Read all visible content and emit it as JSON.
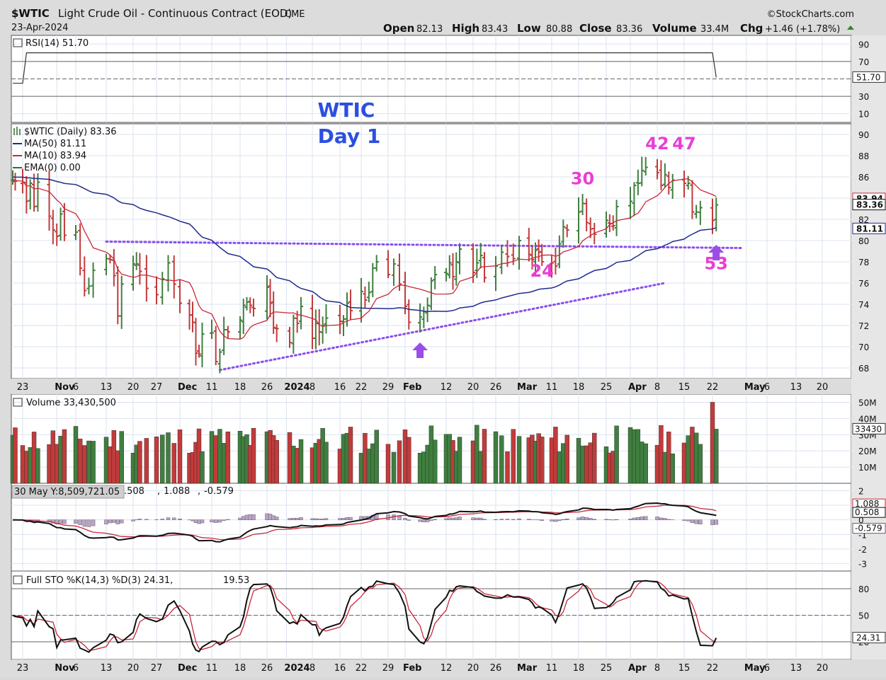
{
  "header": {
    "symbol": "$WTIC",
    "name": "Light Crude Oil - Continuous Contract (EOD)",
    "exchange": "CME",
    "date": "23-Apr-2024",
    "source": "©StockCharts.com",
    "ohlc": {
      "open_label": "Open",
      "open": "82.13",
      "high_label": "High",
      "high": "83.43",
      "low_label": "Low",
      "low": "80.88",
      "close_label": "Close",
      "close": "83.36",
      "volume_label": "Volume",
      "volume": "33.4M",
      "chg_label": "Chg",
      "chg": "+1.46 (+1.78%)"
    }
  },
  "rsi_panel": {
    "legend": "RSI(14) 51.70",
    "value": 51.7,
    "value_tag": "51.70",
    "ticks": [
      "90",
      "70",
      "30",
      "10"
    ]
  },
  "price_panel": {
    "legend": [
      "$WTIC (Daily) 83.36",
      "MA(50) 81.11",
      "MA(10) 83.94",
      "EMA(0) 0.00"
    ],
    "legend_colors": [
      "#111111",
      "#1f2c8c",
      "#c8283a",
      "#2f6f2f"
    ],
    "annotation_title": [
      "WTIC",
      "Day 1"
    ],
    "annotation_color": "#2b4fe0",
    "cycle_labels": [
      {
        "text": "42",
        "date": "2024-04-08",
        "price": 88.6
      },
      {
        "text": "47",
        "date": "2024-04-15",
        "price": 88.6
      },
      {
        "text": "30",
        "date": "2024-03-19",
        "price": 85.3
      },
      {
        "text": "24",
        "date": "2024-03-08",
        "price": 76.6
      },
      {
        "text": "53",
        "date": "2024-04-23",
        "price": 77.3
      }
    ],
    "cycle_label_color": "#e83fd4",
    "arrows": [
      {
        "date": "2024-02-05",
        "price": 70.4,
        "direction": "up"
      },
      {
        "date": "2024-04-23",
        "price": 79.6,
        "direction": "up"
      }
    ],
    "arrow_color": "#9b4de6",
    "trendlines": [
      {
        "from": [
          "2023-11-13",
          79.9
        ],
        "to": [
          "2024-04-30",
          79.3
        ],
        "style": "dotted"
      },
      {
        "from": [
          "2023-12-13",
          67.8
        ],
        "to": [
          "2024-04-10",
          76.0
        ],
        "style": "dotted"
      }
    ],
    "trendline_color": "#8a4cf0",
    "ticks": [
      "90",
      "88",
      "86",
      "84",
      "82",
      "80",
      "78",
      "76",
      "74",
      "72",
      "70",
      "68"
    ],
    "value_tags": [
      {
        "text": "83.94",
        "price": 83.94,
        "color": "#c8283a"
      },
      {
        "text": "83.36",
        "price": 83.36,
        "color": "#111111"
      },
      {
        "text": "81.11",
        "price": 81.11,
        "color": "#1f2c8c"
      }
    ]
  },
  "volume_panel": {
    "legend": "Volume 33,430,500",
    "ticks": [
      "50M",
      "40M",
      "30M",
      "20M",
      "10M"
    ],
    "value_tag": "33430"
  },
  "macd_panel": {
    "tooltip": "30 May Y:8,509,721.05",
    "legend_parts": [
      ".508",
      ", ",
      "1.088",
      ", ",
      "-0.579"
    ],
    "ticks": [
      "2",
      "1",
      "0",
      "-1",
      "-2",
      "-3"
    ],
    "value_tags": [
      {
        "text": "1.088",
        "value": 1.088,
        "color": "#c8283a"
      },
      {
        "text": "0.508",
        "value": 0.508,
        "color": "#111111"
      },
      {
        "text": "-0.579",
        "value": -0.579,
        "color": "#6b5a7a"
      }
    ]
  },
  "sto_panel": {
    "legend_prefix": "Full STO %K(14,3) %D(3) 24.31, ",
    "legend_value": "19.53",
    "ticks": [
      "80",
      "50",
      "20"
    ],
    "value_tag": "24.31"
  },
  "x_axis": {
    "labels": [
      {
        "text": "23",
        "date": "2023-10-23"
      },
      {
        "text": "Nov",
        "date": "2023-11-01",
        "bold": true
      },
      {
        "text": "6",
        "date": "2023-11-06"
      },
      {
        "text": "13",
        "date": "2023-11-13"
      },
      {
        "text": "20",
        "date": "2023-11-20"
      },
      {
        "text": "27",
        "date": "2023-11-27"
      },
      {
        "text": "Dec",
        "date": "2023-12-01",
        "bold": true
      },
      {
        "text": "11",
        "date": "2023-12-11"
      },
      {
        "text": "18",
        "date": "2023-12-18"
      },
      {
        "text": "26",
        "date": "2023-12-26"
      },
      {
        "text": "2024",
        "date": "2024-01-01",
        "bold": true
      },
      {
        "text": "8",
        "date": "2024-01-08"
      },
      {
        "text": "16",
        "date": "2024-01-16"
      },
      {
        "text": "22",
        "date": "2024-01-22"
      },
      {
        "text": "29",
        "date": "2024-01-29"
      },
      {
        "text": "Feb",
        "date": "2024-02-01",
        "bold": true
      },
      {
        "text": "12",
        "date": "2024-02-12"
      },
      {
        "text": "20",
        "date": "2024-02-20"
      },
      {
        "text": "26",
        "date": "2024-02-26"
      },
      {
        "text": "Mar",
        "date": "2024-03-01",
        "bold": true
      },
      {
        "text": "11",
        "date": "2024-03-11"
      },
      {
        "text": "18",
        "date": "2024-03-18"
      },
      {
        "text": "25",
        "date": "2024-03-25"
      },
      {
        "text": "Apr",
        "date": "2024-04-01",
        "bold": true
      },
      {
        "text": "8",
        "date": "2024-04-08"
      },
      {
        "text": "15",
        "date": "2024-04-15"
      },
      {
        "text": "22",
        "date": "2024-04-22"
      },
      {
        "text": "May",
        "date": "2024-05-01",
        "bold": true
      },
      {
        "text": "6",
        "date": "2024-05-06"
      },
      {
        "text": "13",
        "date": "2024-05-13"
      },
      {
        "text": "20",
        "date": "2024-05-20"
      }
    ]
  },
  "colors": {
    "up": "#3f7f3f",
    "down": "#c23b3b",
    "ma50": "#1f2c8c",
    "ma10": "#c8283a",
    "grid": "#dbe3ef",
    "panel_bg": "#ffffff"
  },
  "chart_data": {
    "type": "line",
    "title": "$WTIC Light Crude Oil - Continuous Contract (EOD) CME",
    "date": "23-Apr-2024",
    "price": {
      "close_series": [
        [
          "2023-10-19",
          85.7
        ],
        [
          "2023-10-20",
          85.6
        ],
        [
          "2023-10-23",
          85.5
        ],
        [
          "2023-10-24",
          83.7
        ],
        [
          "2023-10-25",
          85.4
        ],
        [
          "2023-10-26",
          83.2
        ],
        [
          "2023-10-27",
          85.5
        ],
        [
          "2023-10-30",
          82.3
        ],
        [
          "2023-10-31",
          81.0
        ],
        [
          "2023-11-01",
          80.4
        ],
        [
          "2023-11-02",
          82.5
        ],
        [
          "2023-11-03",
          80.5
        ],
        [
          "2023-11-06",
          80.8
        ],
        [
          "2023-11-07",
          77.4
        ],
        [
          "2023-11-08",
          75.3
        ],
        [
          "2023-11-09",
          75.7
        ],
        [
          "2023-11-10",
          77.2
        ],
        [
          "2023-11-13",
          78.3
        ],
        [
          "2023-11-14",
          78.2
        ],
        [
          "2023-11-15",
          76.7
        ],
        [
          "2023-11-16",
          72.9
        ],
        [
          "2023-11-17",
          75.9
        ],
        [
          "2023-11-20",
          77.8
        ],
        [
          "2023-11-21",
          77.8
        ],
        [
          "2023-11-22",
          77.1
        ],
        [
          "2023-11-24",
          75.5
        ],
        [
          "2023-11-27",
          74.9
        ],
        [
          "2023-11-28",
          76.4
        ],
        [
          "2023-11-29",
          77.9
        ],
        [
          "2023-11-30",
          75.9
        ],
        [
          "2023-12-01",
          74.1
        ],
        [
          "2023-12-04",
          73.0
        ],
        [
          "2023-12-05",
          72.3
        ],
        [
          "2023-12-06",
          69.4
        ],
        [
          "2023-12-07",
          69.3
        ],
        [
          "2023-12-08",
          71.2
        ],
        [
          "2023-12-11",
          71.3
        ],
        [
          "2023-12-12",
          68.6
        ],
        [
          "2023-12-13",
          69.5
        ],
        [
          "2023-12-14",
          71.6
        ],
        [
          "2023-12-15",
          71.4
        ],
        [
          "2023-12-18",
          72.5
        ],
        [
          "2023-12-19",
          73.9
        ],
        [
          "2023-12-20",
          74.2
        ],
        [
          "2023-12-21",
          73.9
        ],
        [
          "2023-12-22",
          73.6
        ],
        [
          "2023-12-26",
          75.6
        ],
        [
          "2023-12-27",
          74.1
        ],
        [
          "2023-12-28",
          71.8
        ],
        [
          "2023-12-29",
          71.7
        ],
        [
          "2024-01-02",
          70.4
        ],
        [
          "2024-01-03",
          72.7
        ],
        [
          "2024-01-04",
          72.2
        ],
        [
          "2024-01-05",
          73.8
        ],
        [
          "2024-01-08",
          70.8
        ],
        [
          "2024-01-09",
          72.2
        ],
        [
          "2024-01-10",
          71.4
        ],
        [
          "2024-01-11",
          72.0
        ],
        [
          "2024-01-12",
          72.7
        ],
        [
          "2024-01-16",
          72.4
        ],
        [
          "2024-01-17",
          72.6
        ],
        [
          "2024-01-18",
          74.1
        ],
        [
          "2024-01-19",
          73.4
        ],
        [
          "2024-01-22",
          75.2
        ],
        [
          "2024-01-23",
          74.4
        ],
        [
          "2024-01-24",
          75.1
        ],
        [
          "2024-01-25",
          77.4
        ],
        [
          "2024-01-26",
          78.0
        ],
        [
          "2024-01-29",
          76.8
        ],
        [
          "2024-01-30",
          77.8
        ],
        [
          "2024-01-31",
          75.9
        ],
        [
          "2024-02-01",
          73.8
        ],
        [
          "2024-02-02",
          72.3
        ],
        [
          "2024-02-05",
          72.8
        ],
        [
          "2024-02-06",
          73.3
        ],
        [
          "2024-02-07",
          73.9
        ],
        [
          "2024-02-08",
          76.2
        ],
        [
          "2024-02-09",
          76.8
        ],
        [
          "2024-02-12",
          76.9
        ],
        [
          "2024-02-13",
          77.9
        ],
        [
          "2024-02-14",
          76.6
        ],
        [
          "2024-02-15",
          78.0
        ],
        [
          "2024-02-16",
          79.2
        ],
        [
          "2024-02-20",
          77.0
        ],
        [
          "2024-02-21",
          77.9
        ],
        [
          "2024-02-22",
          78.6
        ],
        [
          "2024-02-23",
          76.5
        ],
        [
          "2024-02-26",
          77.6
        ],
        [
          "2024-02-27",
          78.9
        ],
        [
          "2024-02-28",
          78.5
        ],
        [
          "2024-02-29",
          78.3
        ],
        [
          "2024-03-01",
          80.0
        ],
        [
          "2024-03-04",
          78.7
        ],
        [
          "2024-03-05",
          78.2
        ],
        [
          "2024-03-06",
          79.1
        ],
        [
          "2024-03-07",
          78.9
        ],
        [
          "2024-03-08",
          78.0
        ],
        [
          "2024-03-11",
          77.9
        ],
        [
          "2024-03-12",
          77.6
        ],
        [
          "2024-03-13",
          79.7
        ],
        [
          "2024-03-14",
          81.3
        ],
        [
          "2024-03-15",
          81.0
        ],
        [
          "2024-03-18",
          82.7
        ],
        [
          "2024-03-19",
          83.5
        ],
        [
          "2024-03-20",
          81.7
        ],
        [
          "2024-03-21",
          81.1
        ],
        [
          "2024-03-22",
          80.6
        ],
        [
          "2024-03-25",
          81.9
        ],
        [
          "2024-03-26",
          81.6
        ],
        [
          "2024-03-27",
          81.4
        ],
        [
          "2024-03-28",
          83.2
        ],
        [
          "2024-04-01",
          83.7
        ],
        [
          "2024-04-02",
          85.2
        ],
        [
          "2024-04-03",
          85.4
        ],
        [
          "2024-04-04",
          86.6
        ],
        [
          "2024-04-05",
          86.9
        ],
        [
          "2024-04-08",
          86.4
        ],
        [
          "2024-04-09",
          85.2
        ],
        [
          "2024-04-10",
          86.2
        ],
        [
          "2024-04-11",
          85.0
        ],
        [
          "2024-04-12",
          85.7
        ],
        [
          "2024-04-15",
          85.4
        ],
        [
          "2024-04-16",
          85.4
        ],
        [
          "2024-04-17",
          82.7
        ],
        [
          "2024-04-18",
          82.7
        ],
        [
          "2024-04-19",
          83.1
        ],
        [
          "2024-04-22",
          81.9
        ],
        [
          "2024-04-23",
          83.36
        ]
      ],
      "ma50_last": 81.11,
      "ma10_last": 83.94,
      "ylim": [
        67,
        91
      ]
    },
    "rsi": {
      "last": 51.7,
      "ylim": [
        0,
        100
      ]
    },
    "volume": {
      "last": 33430500,
      "ylim": [
        0,
        55000000
      ]
    },
    "macd": {
      "macd": 0.508,
      "signal": 1.088,
      "histogram": -0.579,
      "ylim": [
        -3.5,
        2.5
      ]
    },
    "stochastic": {
      "k": 24.31,
      "d": 19.53,
      "ylim": [
        0,
        100
      ]
    }
  }
}
